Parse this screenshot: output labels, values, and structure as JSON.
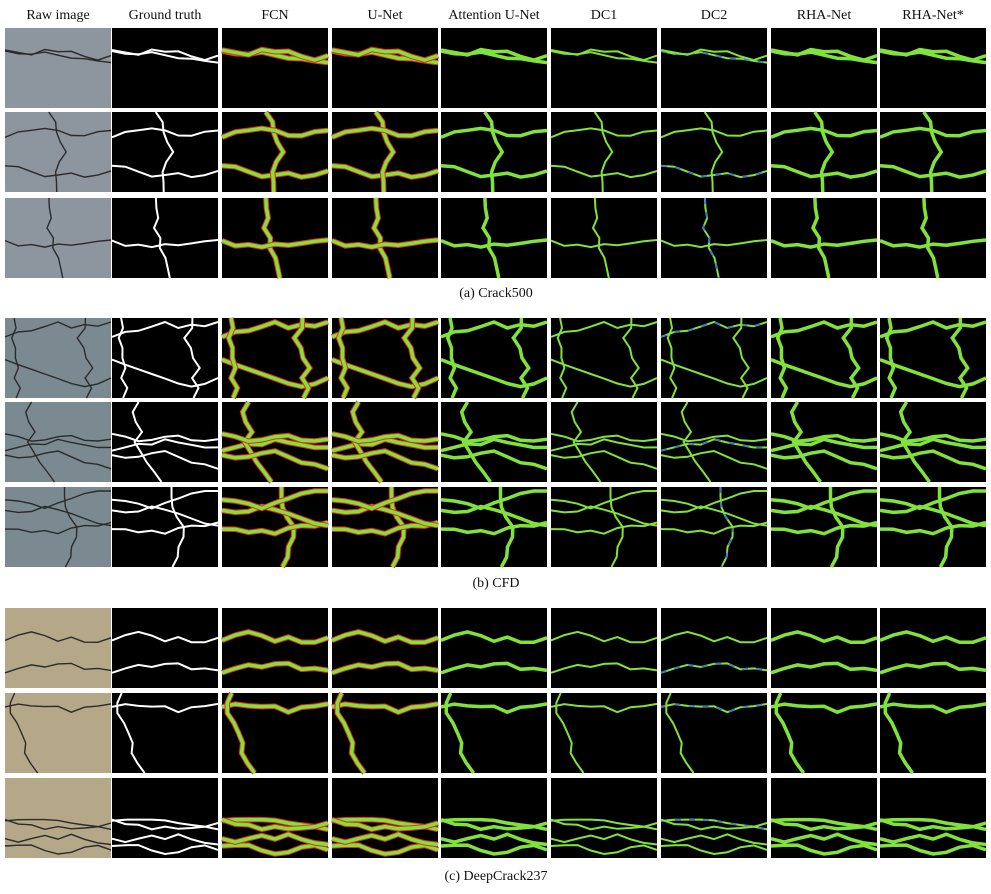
{
  "columns": [
    "Raw image",
    "Ground truth",
    "FCN",
    "U-Net",
    "Attention U-Net",
    "DC1",
    "DC2",
    "RHA-Net",
    "RHA-Net*"
  ],
  "groups": [
    {
      "caption": "(a) Crack500"
    },
    {
      "caption": "(b) CFD"
    },
    {
      "caption": "(c) DeepCrack237"
    }
  ]
}
